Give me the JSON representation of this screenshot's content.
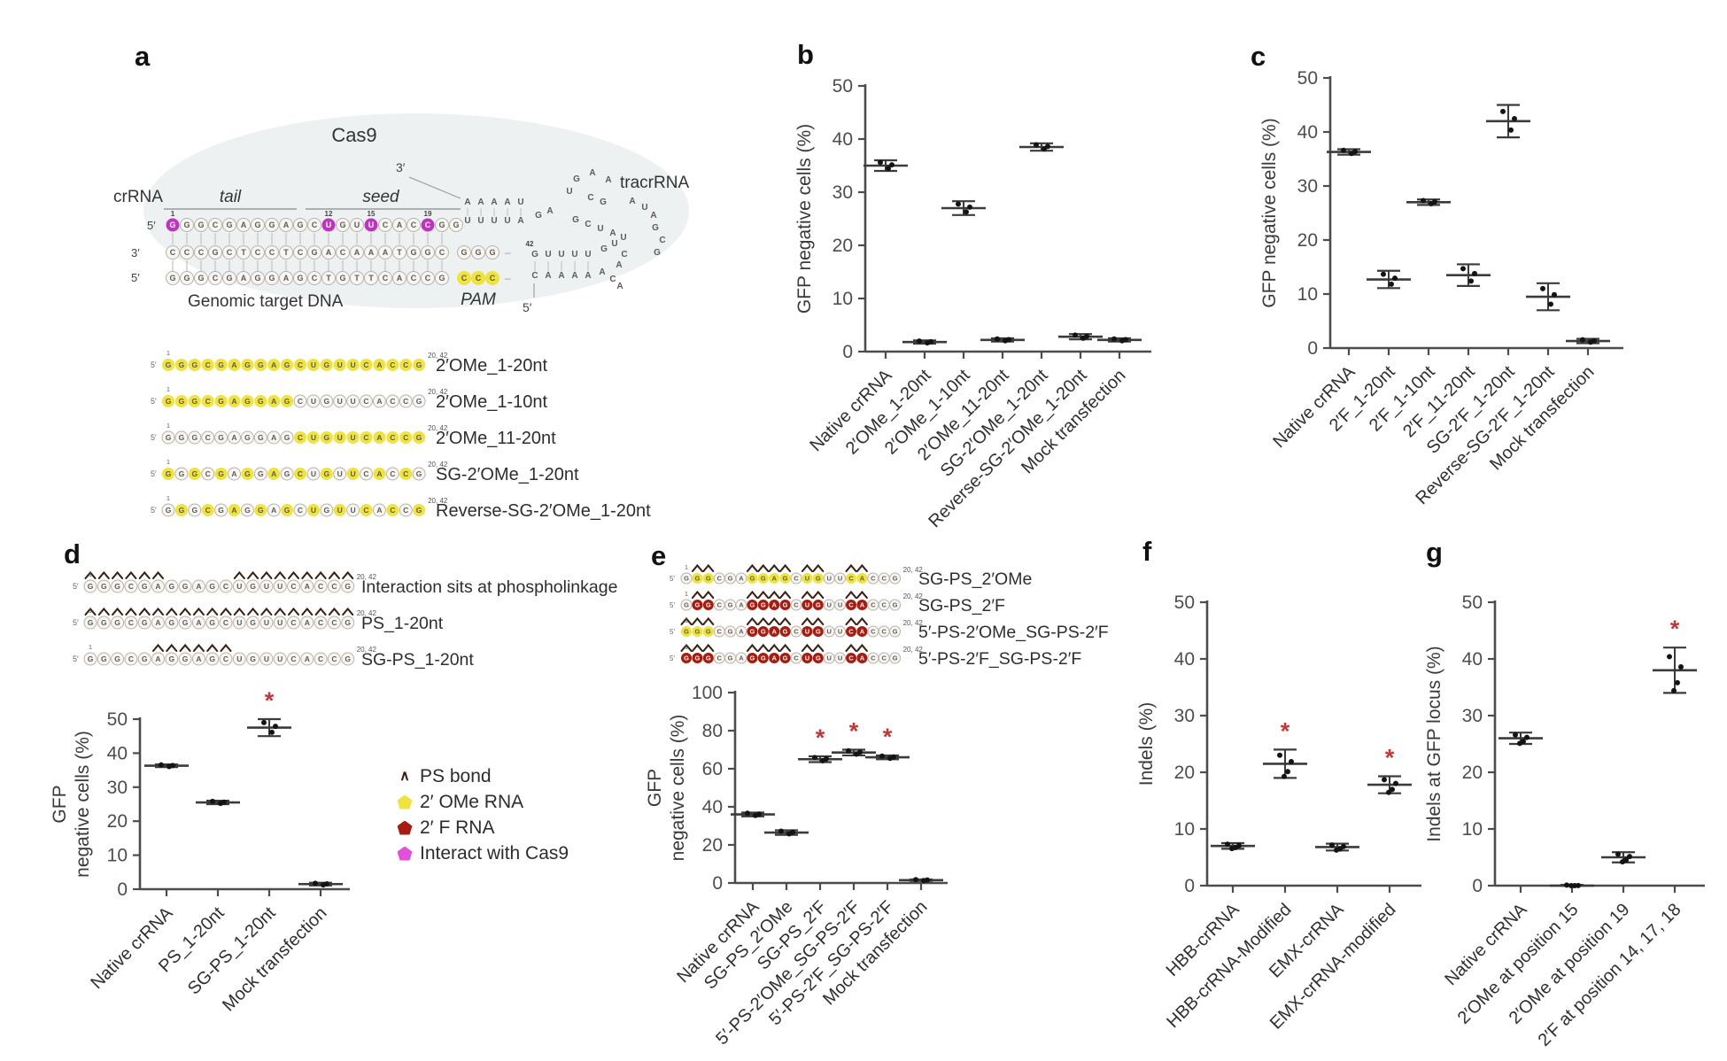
{
  "panels": {
    "a": "a",
    "b": "b",
    "c": "c",
    "d": "d",
    "e": "e",
    "f": "f",
    "g": "g"
  },
  "panel_a": {
    "labels": {
      "cas9": "Cas9",
      "crrna": "crRNA",
      "tail": "tail",
      "seed": "seed",
      "three_prime": "3′",
      "five_prime": "5′",
      "tracrrna": "tracrRNA",
      "genomic": "Genomic target DNA",
      "pam": "PAM",
      "sup": "20, 42",
      "pos1": "1",
      "pos12": "12",
      "pos15": "15",
      "pos19": "19",
      "num42": "42",
      "dash": "–"
    },
    "strands": {
      "guide": "GGGCGAGGAGCUGUUCACCGG",
      "guide_magenta": [
        0,
        11,
        14,
        18
      ],
      "complement": "CCCGCTCCTCGACAAATGGC",
      "complement_ext": "GGG",
      "genomic": "GGGCGAGGAGCTGTTCACCG",
      "pam_seq": "CCC",
      "tracr": {
        "pair_top": "AAAAU",
        "pair_bottom": "UUUUA",
        "ga": "GA",
        "loop": "UGAA",
        "cg": "CG",
        "aua": "AUA",
        "gcuau": "GCUAU",
        "right": "GCG",
        "stem_top": "GUUUU",
        "bend": "GUCA",
        "stem_bottom": "CAAAA",
        "aca": "ACA"
      }
    },
    "mod_seq": "GGGCGAGGAGCUGUUCACCG",
    "mod_rows": [
      {
        "label": "2′OMe_1-20nt",
        "yellow": [
          0,
          1,
          2,
          3,
          4,
          5,
          6,
          7,
          8,
          9,
          10,
          11,
          12,
          13,
          14,
          15,
          16,
          17,
          18,
          19
        ]
      },
      {
        "label": "2′OMe_1-10nt",
        "yellow": [
          0,
          1,
          2,
          3,
          4,
          5,
          6,
          7,
          8,
          9
        ]
      },
      {
        "label": "2′OMe_11-20nt",
        "yellow": [
          10,
          11,
          12,
          13,
          14,
          15,
          16,
          17,
          18,
          19
        ]
      },
      {
        "label": "SG-2′OMe_1-20nt",
        "yellow": [
          0,
          2,
          4,
          6,
          8,
          10,
          12,
          14,
          16,
          18
        ]
      },
      {
        "label": "Reverse-SG-2′OMe_1-20nt",
        "yellow": [
          1,
          3,
          5,
          7,
          9,
          11,
          13,
          15,
          17,
          19
        ]
      }
    ]
  },
  "panel_d": {
    "seq": "GGGCGAGGAGCUGUUCACCG",
    "rows": [
      {
        "label": "Interaction sits at phospholinkage",
        "yellow": [],
        "red": [],
        "carets": [
          0,
          1,
          2,
          3,
          4,
          5,
          11,
          12,
          13,
          14,
          15,
          16,
          17,
          18,
          19
        ]
      },
      {
        "label": "PS_1-20nt",
        "yellow": [],
        "red": [],
        "carets": [
          0,
          1,
          2,
          3,
          4,
          5,
          6,
          7,
          8,
          9,
          10,
          11,
          12,
          13,
          14,
          15,
          16,
          17,
          18,
          19
        ]
      },
      {
        "label": "SG-PS_1-20nt",
        "yellow": [],
        "red": [],
        "carets": [
          5,
          6,
          7,
          8,
          9,
          10
        ]
      }
    ],
    "legend": [
      {
        "label": "PS bond",
        "type": "caret",
        "color": "#3a2012"
      },
      {
        "label": "2′ OMe RNA",
        "type": "pentagon",
        "color": "#efe33c"
      },
      {
        "label": "2′ F RNA",
        "type": "pentagon",
        "color": "#a81c10"
      },
      {
        "label": "Interact with Cas9",
        "type": "pentagon",
        "color": "#e24fd8"
      }
    ]
  },
  "panel_e": {
    "seq": "GGGCGAGGAGCUGUUCACCG",
    "rows": [
      {
        "label": "SG-PS_2′OMe",
        "yellow": [
          1,
          2,
          6,
          7,
          8,
          9,
          11,
          12,
          15,
          16
        ],
        "red": [],
        "carets": [
          1,
          2,
          6,
          7,
          8,
          9,
          11,
          12,
          15,
          16
        ]
      },
      {
        "label": "SG-PS_2′F",
        "yellow": [],
        "red": [
          1,
          2,
          6,
          7,
          8,
          9,
          11,
          12,
          15,
          16
        ],
        "carets": [
          1,
          2,
          6,
          7,
          8,
          9,
          11,
          12,
          15,
          16
        ]
      },
      {
        "label": "5′-PS-2′OMe_SG-PS-2′F",
        "yellow": [
          0,
          1,
          2
        ],
        "red": [
          6,
          7,
          8,
          9,
          11,
          12,
          15,
          16
        ],
        "carets": [
          0,
          1,
          2,
          6,
          7,
          8,
          9,
          11,
          12,
          15,
          16
        ]
      },
      {
        "label": "5′-PS-2′F_SG-PS-2′F",
        "yellow": [],
        "red": [
          0,
          1,
          2,
          6,
          7,
          8,
          9,
          11,
          12,
          15,
          16
        ],
        "carets": [
          0,
          1,
          2,
          6,
          7,
          8,
          9,
          11,
          12,
          15,
          16
        ]
      }
    ]
  },
  "chart_data": [
    {
      "id": "b",
      "type": "scatter",
      "title": "",
      "ylabel": [
        "GFP negative cells (%)"
      ],
      "ylim": [
        0,
        50
      ],
      "yticks": [
        0,
        10,
        20,
        30,
        40,
        50
      ],
      "categories": [
        "Native crRNA",
        "2′OMe_1-20nt",
        "2′OMe_1-10nt",
        "2′OMe_11-20nt",
        "SG-2′OMe_1-20nt",
        "Reverse-SG-2′OMe_1-20nt",
        "Mock transfection"
      ],
      "means": [
        35,
        1.8,
        27,
        2.2,
        38.5,
        2.8,
        2.2
      ],
      "errors": [
        1,
        0.3,
        1.3,
        0.3,
        0.7,
        0.5,
        0.3
      ],
      "significant": [
        false,
        false,
        false,
        false,
        false,
        false,
        false
      ]
    },
    {
      "id": "c",
      "type": "scatter",
      "title": "",
      "ylabel": [
        "GFP negative cells (%)"
      ],
      "ylim": [
        0,
        50
      ],
      "yticks": [
        0,
        10,
        20,
        30,
        40,
        50
      ],
      "categories": [
        "Native crRNA",
        "2′F_1-20nt",
        "2′F_1-10nt",
        "2′F_11-20nt",
        "SG-2′F_1-20nt",
        "Reverse-SG-2′F_1-20nt",
        "Mock transfection"
      ],
      "means": [
        36.3,
        12.7,
        27,
        13.5,
        42,
        9.5,
        1.3
      ],
      "errors": [
        0.5,
        1.6,
        0.5,
        2,
        3,
        2.5,
        0.4
      ],
      "significant": [
        false,
        false,
        false,
        false,
        false,
        false,
        false
      ]
    },
    {
      "id": "d",
      "type": "scatter",
      "title": "",
      "ylabel": [
        "GFP",
        "negative cells (%)"
      ],
      "ylim": [
        0,
        50
      ],
      "yticks": [
        0,
        10,
        20,
        30,
        40,
        50
      ],
      "categories": [
        "Native crRNA",
        "PS_1-20nt",
        "SG-PS_1-20nt",
        "Mock transfection"
      ],
      "means": [
        36.3,
        25.5,
        47.5,
        1.5
      ],
      "errors": [
        0.4,
        0.5,
        2.5,
        0.4
      ],
      "significant": [
        false,
        false,
        true,
        false
      ]
    },
    {
      "id": "e",
      "type": "scatter",
      "title": "",
      "ylabel": [
        "GFP",
        "negative cells (%)"
      ],
      "ylim": [
        0,
        100
      ],
      "yticks": [
        0,
        20,
        40,
        60,
        80,
        100
      ],
      "categories": [
        "Native crRNA",
        "SG-PS_2′OMe",
        "SG-PS_2′F",
        "5′-PS-2′OMe_SG-PS-2′F",
        "5′-PS-2′F_SG-PS-2′F",
        "Mock transfection"
      ],
      "means": [
        36,
        26.5,
        65,
        68.5,
        66,
        1.5
      ],
      "errors": [
        1,
        1.2,
        1.5,
        1.5,
        1,
        0.4
      ],
      "significant": [
        false,
        false,
        true,
        true,
        true,
        false
      ]
    },
    {
      "id": "f",
      "type": "scatter",
      "title": "",
      "ylabel": [
        "Indels (%)"
      ],
      "ylim": [
        0,
        50
      ],
      "yticks": [
        0,
        10,
        20,
        30,
        40,
        50
      ],
      "categories": [
        "HBB-crRNA",
        "HBB-crRNA-Modified",
        "EMX-crRNA",
        "EMX-crRNA-modified"
      ],
      "means": [
        7,
        21.5,
        6.8,
        17.8
      ],
      "errors": [
        0.5,
        2.5,
        0.6,
        1.5
      ],
      "significant": [
        false,
        true,
        false,
        true
      ]
    },
    {
      "id": "g",
      "type": "scatter",
      "title": "",
      "ylabel": [
        "Indels at GFP locus (%)"
      ],
      "ylim": [
        0,
        50
      ],
      "yticks": [
        0,
        10,
        20,
        30,
        40,
        50
      ],
      "categories": [
        "Native crRNA",
        "2′OMe at position 15",
        "2′OMe at position 19",
        "2′F at position 14, 17, 18"
      ],
      "means": [
        26,
        0,
        5,
        38
      ],
      "errors": [
        1,
        0.15,
        0.9,
        4
      ],
      "significant": [
        false,
        false,
        false,
        true
      ]
    }
  ],
  "style": {
    "star_color": "#c63636",
    "axis_color": "#4c4c4c",
    "yellow": "#efe33c",
    "red": "#a81c10",
    "magenta": "#c032c0"
  }
}
